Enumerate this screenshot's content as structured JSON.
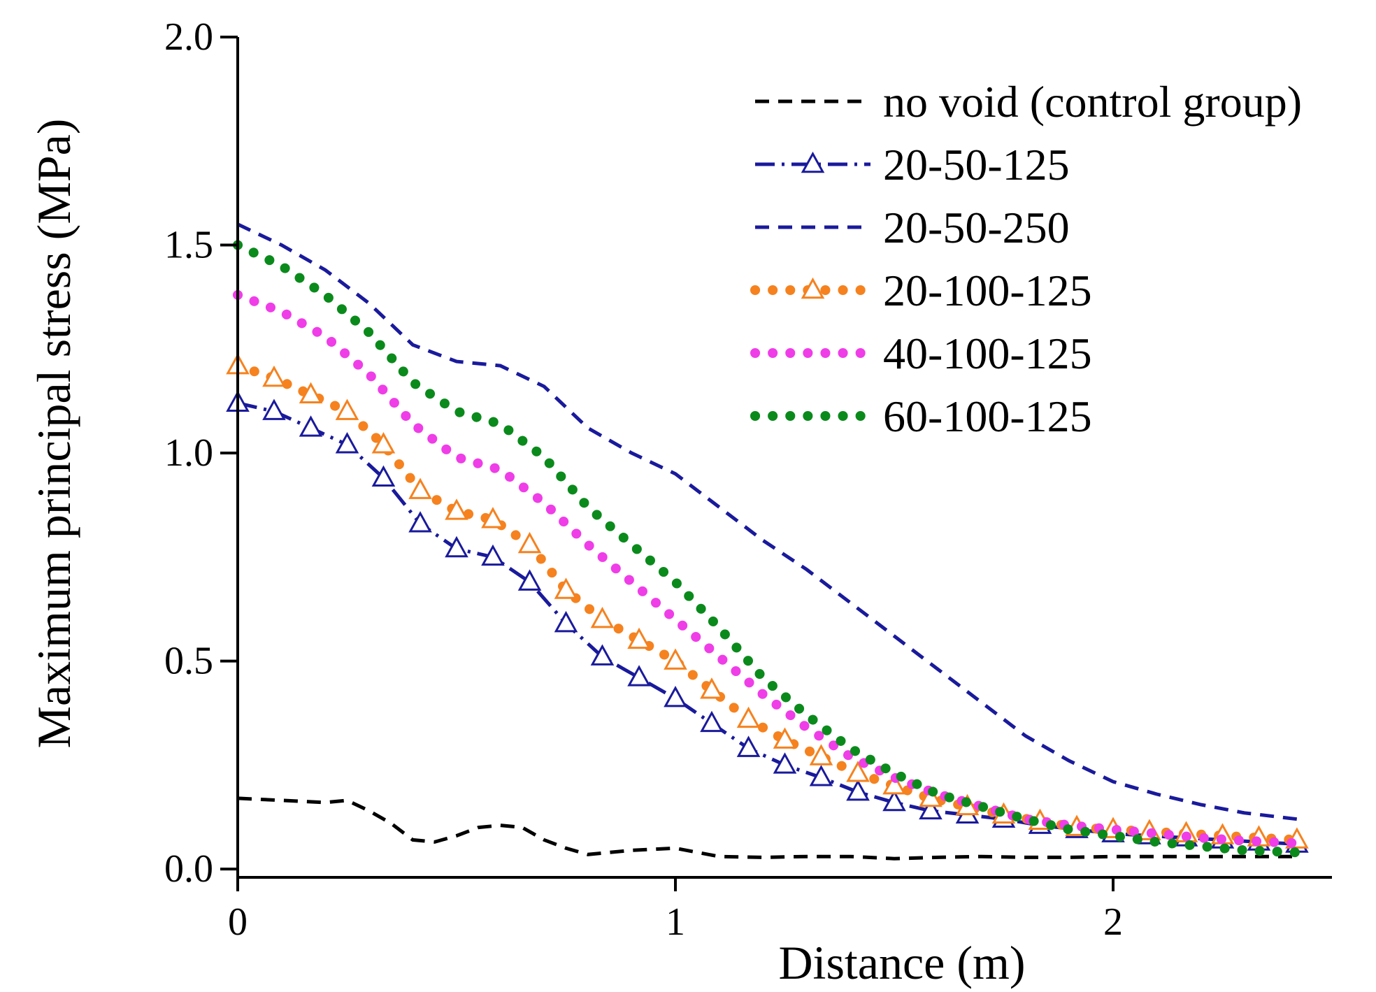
{
  "chart_data": {
    "type": "line",
    "title": "",
    "xlabel": "Distance (m)",
    "ylabel": "Maximum principal stress (MPa)",
    "xlim": [
      0,
      2.5
    ],
    "ylim": [
      -0.02,
      2.0
    ],
    "xticks": [
      0,
      1,
      2
    ],
    "xtick_labels": [
      "0",
      "1",
      "2"
    ],
    "yticks": [
      0.0,
      0.5,
      1.0,
      1.5,
      2.0
    ],
    "ytick_labels": [
      "0.0",
      "0.5",
      "1.0",
      "1.5",
      "2.0"
    ],
    "grid": false,
    "legend_position": "top-right",
    "series": [
      {
        "name": "no void (control group)",
        "color": "#000000",
        "style": "dash",
        "marker": "none",
        "x": [
          0,
          0.1,
          0.2,
          0.25,
          0.3,
          0.35,
          0.4,
          0.45,
          0.5,
          0.55,
          0.6,
          0.65,
          0.7,
          0.75,
          0.8,
          0.85,
          0.9,
          1.0,
          1.05,
          1.1,
          1.2,
          1.3,
          1.4,
          1.5,
          1.6,
          1.7,
          1.8,
          1.9,
          2.0,
          2.1,
          2.2,
          2.3,
          2.42
        ],
        "y": [
          0.17,
          0.165,
          0.16,
          0.165,
          0.14,
          0.11,
          0.07,
          0.065,
          0.08,
          0.1,
          0.105,
          0.1,
          0.07,
          0.05,
          0.035,
          0.04,
          0.045,
          0.05,
          0.04,
          0.03,
          0.028,
          0.03,
          0.03,
          0.025,
          0.028,
          0.03,
          0.028,
          0.028,
          0.03,
          0.03,
          0.03,
          0.03,
          0.03
        ]
      },
      {
        "name": "20-50-125",
        "color": "#1a1a9c",
        "style": "dashdot",
        "marker": "open-triangle",
        "x": [
          0,
          0.083,
          0.167,
          0.25,
          0.333,
          0.417,
          0.5,
          0.583,
          0.667,
          0.75,
          0.833,
          0.917,
          1.0,
          1.083,
          1.167,
          1.25,
          1.333,
          1.417,
          1.5,
          1.583,
          1.667,
          1.75,
          1.833,
          1.917,
          2.0,
          2.083,
          2.167,
          2.25,
          2.333,
          2.42
        ],
        "y": [
          1.12,
          1.1,
          1.06,
          1.02,
          0.94,
          0.83,
          0.77,
          0.75,
          0.69,
          0.59,
          0.51,
          0.46,
          0.41,
          0.35,
          0.29,
          0.25,
          0.22,
          0.185,
          0.16,
          0.14,
          0.13,
          0.12,
          0.105,
          0.095,
          0.085,
          0.08,
          0.075,
          0.07,
          0.065,
          0.06
        ]
      },
      {
        "name": "20-50-250",
        "color": "#1a1a9c",
        "style": "dash",
        "marker": "none",
        "x": [
          0,
          0.1,
          0.2,
          0.3,
          0.4,
          0.5,
          0.6,
          0.7,
          0.8,
          0.9,
          1.0,
          1.1,
          1.2,
          1.3,
          1.4,
          1.5,
          1.6,
          1.7,
          1.8,
          1.9,
          2.0,
          2.1,
          2.2,
          2.3,
          2.42
        ],
        "y": [
          1.55,
          1.5,
          1.44,
          1.36,
          1.26,
          1.22,
          1.21,
          1.16,
          1.06,
          1.0,
          0.95,
          0.87,
          0.79,
          0.72,
          0.64,
          0.56,
          0.48,
          0.4,
          0.32,
          0.26,
          0.21,
          0.18,
          0.155,
          0.135,
          0.12
        ]
      },
      {
        "name": "20-100-125",
        "color": "#f5821f",
        "style": "dot",
        "marker": "open-triangle",
        "x": [
          0,
          0.083,
          0.167,
          0.25,
          0.333,
          0.417,
          0.5,
          0.583,
          0.667,
          0.75,
          0.833,
          0.917,
          1.0,
          1.083,
          1.167,
          1.25,
          1.333,
          1.417,
          1.5,
          1.583,
          1.667,
          1.75,
          1.833,
          1.917,
          2.0,
          2.083,
          2.167,
          2.25,
          2.333,
          2.42
        ],
        "y": [
          1.21,
          1.18,
          1.14,
          1.1,
          1.02,
          0.91,
          0.86,
          0.84,
          0.78,
          0.67,
          0.6,
          0.55,
          0.5,
          0.43,
          0.36,
          0.31,
          0.27,
          0.23,
          0.2,
          0.17,
          0.15,
          0.13,
          0.115,
          0.1,
          0.095,
          0.09,
          0.085,
          0.08,
          0.075,
          0.07
        ]
      },
      {
        "name": "40-100-125",
        "color": "#ef3de8",
        "style": "dot",
        "marker": "none",
        "x": [
          0,
          0.1,
          0.2,
          0.3,
          0.4,
          0.5,
          0.6,
          0.7,
          0.8,
          0.9,
          1.0,
          1.1,
          1.2,
          1.3,
          1.4,
          1.5,
          1.6,
          1.7,
          1.8,
          1.9,
          2.0,
          2.1,
          2.2,
          2.3,
          2.42
        ],
        "y": [
          1.38,
          1.34,
          1.28,
          1.19,
          1.07,
          0.99,
          0.96,
          0.88,
          0.78,
          0.69,
          0.6,
          0.51,
          0.42,
          0.34,
          0.27,
          0.22,
          0.18,
          0.15,
          0.12,
          0.105,
          0.095,
          0.085,
          0.075,
          0.068,
          0.062
        ]
      },
      {
        "name": "60-100-125",
        "color": "#0b8a1c",
        "style": "dot",
        "marker": "none",
        "x": [
          0,
          0.1,
          0.2,
          0.3,
          0.4,
          0.5,
          0.6,
          0.7,
          0.8,
          0.9,
          1.0,
          1.1,
          1.2,
          1.3,
          1.4,
          1.5,
          1.6,
          1.7,
          1.8,
          1.9,
          2.0,
          2.1,
          2.2,
          2.3,
          2.42
        ],
        "y": [
          1.5,
          1.45,
          1.38,
          1.29,
          1.17,
          1.1,
          1.07,
          0.99,
          0.87,
          0.78,
          0.69,
          0.58,
          0.46,
          0.37,
          0.29,
          0.23,
          0.18,
          0.15,
          0.12,
          0.095,
          0.08,
          0.065,
          0.055,
          0.045,
          0.04
        ]
      }
    ]
  }
}
